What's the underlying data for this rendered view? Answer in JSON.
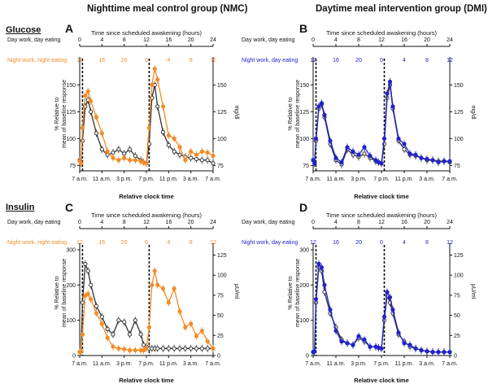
{
  "figure": {
    "column_titles": [
      "Nighttime meal control group (NMC)",
      "Daytime meal intervention group (DMI)"
    ],
    "section_titles": [
      "Glucose",
      "Insulin"
    ],
    "colors": {
      "black": "#333333",
      "orange": "#f28c28",
      "blue": "#2222cc"
    }
  },
  "chart_data": [
    {
      "panel": "A",
      "type": "line",
      "group": "NMC",
      "measure": "Glucose",
      "top_axis_title": "Time since scheduled awakening (hours)",
      "row1_label": "Day work, day eating",
      "row1_ticks": [
        "0",
        "4",
        "8",
        "12",
        "16",
        "20",
        "24"
      ],
      "row2_label": "Night work, night eating",
      "row2_ticks": [
        "12",
        "16",
        "20",
        "0",
        "4",
        "8",
        "12"
      ],
      "row2_color": "orange",
      "xlabel": "Relative clock time",
      "x_ticks": [
        "7 a.m.",
        "11 a.m.",
        "3 p.m.",
        "7 p.m.",
        "11 p.m.",
        "3 a.m.",
        "7 a.m."
      ],
      "ylabel_left": "% Relative to mean of baseline response",
      "left_ticks": [
        75,
        100,
        125,
        150
      ],
      "ylim": [
        70,
        170
      ],
      "ylabel_right": "mg/dl",
      "right_ticks": [
        75,
        100,
        125,
        150
      ],
      "meal_lines_x": [
        0.5,
        12.5
      ],
      "x": [
        0,
        0.25,
        0.5,
        1,
        1.5,
        2,
        3,
        4,
        5,
        6,
        7,
        8,
        9,
        10,
        11,
        11.5,
        12,
        12.5,
        13,
        13.5,
        14,
        15,
        16,
        17,
        18,
        19,
        20,
        21,
        22,
        23,
        24
      ],
      "series": [
        {
          "color": "black",
          "values": [
            80,
            77,
            98,
            130,
            136,
            125,
            105,
            90,
            85,
            87,
            90,
            86,
            90,
            84,
            80,
            78,
            77,
            95,
            138,
            150,
            130,
            106,
            94,
            88,
            85,
            83,
            82,
            81,
            80,
            80,
            77
          ]
        },
        {
          "color": "orange",
          "values": [
            79,
            77,
            110,
            140,
            144,
            135,
            120,
            105,
            88,
            82,
            80,
            82,
            80,
            80,
            79,
            78,
            77,
            110,
            150,
            165,
            155,
            130,
            103,
            100,
            92,
            80,
            88,
            85,
            88,
            87,
            84
          ]
        }
      ]
    },
    {
      "panel": "B",
      "type": "line",
      "group": "DMI",
      "measure": "Glucose",
      "top_axis_title": "Time since scheduled awakening (hours)",
      "row1_label": "Day work, day eating",
      "row1_ticks": [
        "0",
        "4",
        "8",
        "12",
        "16",
        "20",
        "24"
      ],
      "row2_label": "Night work, day eating",
      "row2_ticks": [
        "12",
        "16",
        "20",
        "0",
        "4",
        "8",
        "12"
      ],
      "row2_color": "blue",
      "xlabel": "Relative clock time",
      "x_ticks": [
        "7 a.m.",
        "11 a.m.",
        "3 p.m.",
        "7 p.m.",
        "11 p.m.",
        "3 a.m.",
        "7 a.m."
      ],
      "ylabel_left": "% Relative to mean of baseline response",
      "left_ticks": [
        75,
        100,
        125,
        150
      ],
      "ylim": [
        70,
        170
      ],
      "ylabel_right": "mg/dl",
      "right_ticks": [
        75,
        100,
        125,
        150
      ],
      "meal_lines_x": [
        0.5,
        12.5
      ],
      "x": [
        0,
        0.25,
        0.5,
        1,
        1.5,
        2,
        3,
        4,
        5,
        6,
        7,
        8,
        9,
        10,
        11,
        11.5,
        12,
        12.5,
        13,
        13.5,
        14,
        15,
        16,
        17,
        18,
        19,
        20,
        21,
        22,
        23,
        24
      ],
      "series": [
        {
          "color": "black",
          "values": [
            80,
            77,
            98,
            128,
            132,
            120,
            95,
            80,
            76,
            90,
            85,
            83,
            86,
            82,
            79,
            78,
            77,
            95,
            138,
            150,
            128,
            98,
            90,
            85,
            84,
            82,
            80,
            80,
            79,
            79,
            78
          ]
        },
        {
          "color": "blue",
          "values": [
            80,
            77,
            100,
            130,
            133,
            122,
            98,
            82,
            78,
            92,
            88,
            85,
            92,
            84,
            80,
            78,
            77,
            100,
            142,
            153,
            130,
            100,
            95,
            86,
            85,
            82,
            81,
            80,
            78,
            79,
            79
          ]
        }
      ]
    },
    {
      "panel": "C",
      "type": "line",
      "group": "NMC",
      "measure": "Insulin",
      "top_axis_title": "Time since scheduled awakening (hours)",
      "row1_label": "Day work, day eating",
      "row1_ticks": [
        "0",
        "4",
        "8",
        "12",
        "16",
        "20",
        "24"
      ],
      "row2_label": "Night work, night eating",
      "row2_ticks": [
        "12",
        "16",
        "20",
        "0",
        "4",
        "8",
        "12"
      ],
      "row2_color": "orange",
      "xlabel": "Relative clock time",
      "x_ticks": [
        "7 a.m.",
        "11 a.m.",
        "3 p.m.",
        "7 p.m.",
        "11 p.m.",
        "3 a.m.",
        "7 a.m."
      ],
      "ylabel_left": "% Relative to mean of baseline response",
      "left_ticks": [
        0,
        100,
        200,
        300
      ],
      "ylim": [
        0,
        300
      ],
      "ylabel_right": "µU/ml",
      "right_ticks": [
        0,
        25,
        50,
        75,
        100,
        125
      ],
      "meal_lines_x": [
        0.5,
        12.5
      ],
      "x": [
        0,
        0.25,
        0.5,
        1,
        1.5,
        2,
        3,
        4,
        5,
        6,
        7,
        8,
        9,
        10,
        11,
        11.5,
        12,
        12.5,
        13,
        13.5,
        14,
        15,
        16,
        17,
        18,
        19,
        20,
        21,
        22,
        23,
        24
      ],
      "series": [
        {
          "color": "black",
          "values": [
            10,
            12,
            150,
            260,
            240,
            200,
            140,
            110,
            75,
            60,
            100,
            95,
            60,
            100,
            60,
            30,
            25,
            20,
            20,
            20,
            20,
            20,
            20,
            20,
            20,
            20,
            20,
            20,
            20,
            20,
            20
          ]
        },
        {
          "color": "orange",
          "values": [
            10,
            12,
            60,
            170,
            175,
            160,
            120,
            90,
            50,
            25,
            20,
            18,
            15,
            15,
            15,
            15,
            20,
            80,
            200,
            240,
            200,
            190,
            150,
            190,
            125,
            80,
            90,
            55,
            70,
            40,
            20
          ]
        }
      ]
    },
    {
      "panel": "D",
      "type": "line",
      "group": "DMI",
      "measure": "Insulin",
      "top_axis_title": "Time since scheduled awakening (hours)",
      "row1_label": "Day work, day eating",
      "row1_ticks": [
        "0",
        "4",
        "8",
        "12",
        "16",
        "20",
        "24"
      ],
      "row2_label": "Night work, day eating",
      "row2_ticks": [
        "12",
        "16",
        "20",
        "0",
        "4",
        "8",
        "12"
      ],
      "row2_color": "blue",
      "xlabel": "Relative clock time",
      "x_ticks": [
        "7 a.m.",
        "11 a.m.",
        "3 p.m.",
        "7 p.m.",
        "11 p.m.",
        "3 a.m.",
        "7 a.m."
      ],
      "ylabel_left": "% Relative to mean of baseline response",
      "left_ticks": [
        0,
        100,
        200,
        300
      ],
      "ylim": [
        0,
        300
      ],
      "ylabel_right": "µU/ml",
      "right_ticks": [
        0,
        25,
        50,
        75,
        100,
        125
      ],
      "meal_lines_x": [
        0.5,
        12.5
      ],
      "x": [
        0,
        0.25,
        0.5,
        1,
        1.5,
        2,
        3,
        4,
        5,
        6,
        7,
        8,
        9,
        10,
        11,
        11.5,
        12,
        12.5,
        13,
        13.5,
        14,
        15,
        16,
        17,
        18,
        19,
        20,
        21,
        22,
        23,
        24
      ],
      "series": [
        {
          "color": "black",
          "values": [
            10,
            12,
            150,
            250,
            240,
            180,
            120,
            80,
            45,
            35,
            30,
            50,
            40,
            25,
            25,
            22,
            20,
            100,
            170,
            150,
            120,
            60,
            40,
            25,
            20,
            15,
            12,
            10,
            10,
            10,
            10
          ]
        },
        {
          "color": "blue",
          "values": [
            10,
            12,
            160,
            260,
            250,
            200,
            130,
            70,
            40,
            35,
            30,
            55,
            45,
            25,
            25,
            22,
            20,
            110,
            180,
            165,
            130,
            65,
            35,
            30,
            20,
            15,
            12,
            10,
            10,
            10,
            10
          ]
        }
      ]
    }
  ]
}
